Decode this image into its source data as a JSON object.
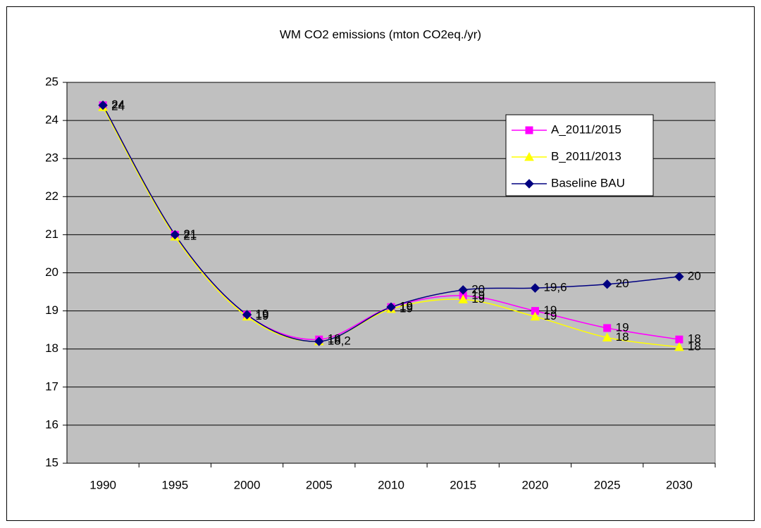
{
  "chart_data": {
    "type": "line",
    "title": "WM CO2 emissions (mton CO2eq./yr)",
    "categories": [
      "1990",
      "1995",
      "2000",
      "2005",
      "2010",
      "2015",
      "2020",
      "2025",
      "2030"
    ],
    "series": [
      {
        "name": "A_2011/2015",
        "color": "#ff00ff",
        "marker": "square",
        "values": [
          24.4,
          21.0,
          18.9,
          18.25,
          19.1,
          19.4,
          19.0,
          18.55,
          18.25
        ],
        "value_labels": [
          "24",
          "21",
          "19",
          "18",
          "19",
          "19",
          "19",
          "19",
          "18"
        ]
      },
      {
        "name": "B_2011/2013",
        "color": "#ffff00",
        "marker": "triangle",
        "values": [
          24.35,
          20.95,
          18.85,
          18.2,
          19.05,
          19.3,
          18.85,
          18.3,
          18.05
        ],
        "value_labels": [
          "24",
          "21",
          "19",
          "18",
          "19",
          "19",
          "19",
          "18",
          "18"
        ]
      },
      {
        "name": "Baseline BAU",
        "color": "#000080",
        "marker": "diamond",
        "values": [
          24.4,
          21.0,
          18.9,
          18.2,
          19.1,
          19.55,
          19.6,
          19.7,
          19.9
        ],
        "value_labels": [
          "24",
          "21",
          "19",
          "18,2",
          "19",
          "20",
          "19,6",
          "20",
          "20"
        ]
      }
    ],
    "ylim": [
      15,
      25
    ],
    "yticks": [
      15,
      16,
      17,
      18,
      19,
      20,
      21,
      22,
      23,
      24,
      25
    ],
    "grid": true,
    "smooth": true,
    "legend": "top-right"
  }
}
